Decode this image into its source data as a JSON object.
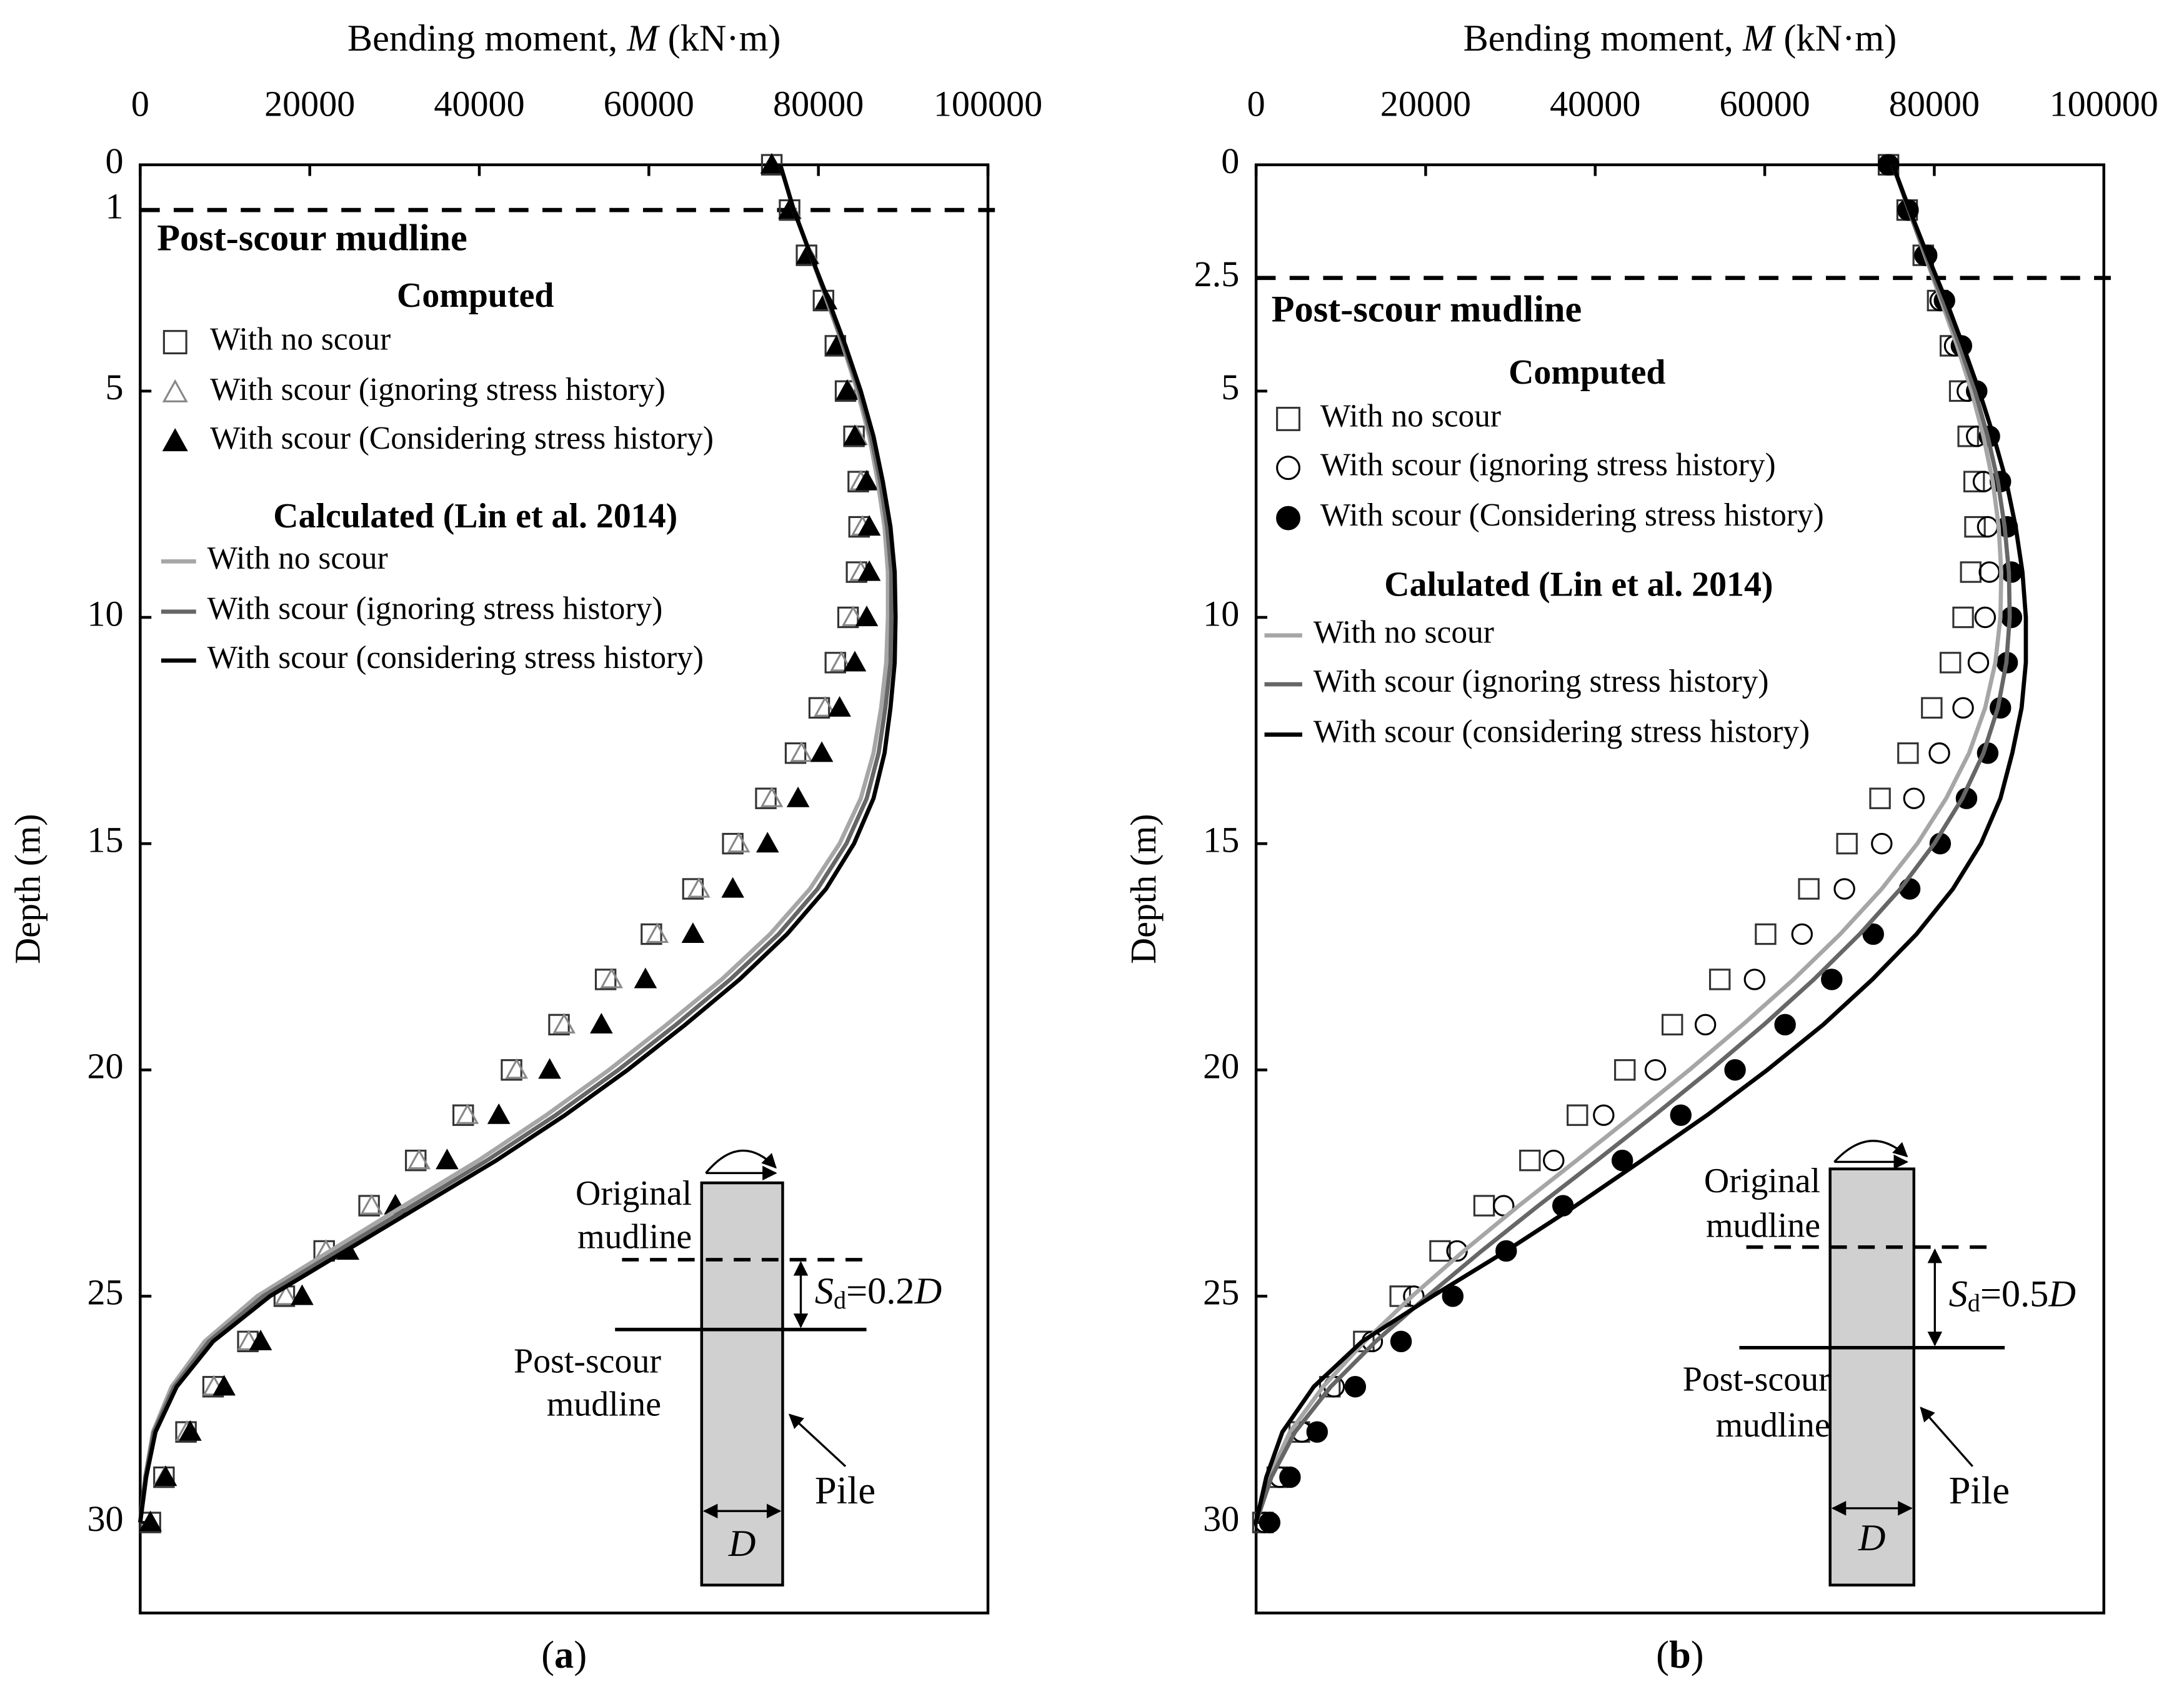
{
  "chart_data": [
    {
      "type": "line",
      "x_label": [
        "Bending moment, ",
        "M",
        " (kN·m)"
      ],
      "y_label": "Depth (m)",
      "xlim": [
        0,
        100000
      ],
      "xticks": [
        0,
        20000,
        40000,
        60000,
        80000,
        100000
      ],
      "ylim": [
        0,
        32
      ],
      "yticks": [
        0,
        1,
        5,
        10,
        15,
        20,
        25,
        30
      ],
      "y_inverted": true,
      "y": [
        0,
        1,
        2,
        3,
        4,
        5,
        6,
        7,
        8,
        9,
        10,
        11,
        12,
        13,
        14,
        15,
        16,
        17,
        18,
        19,
        20,
        21,
        22,
        23,
        24,
        25,
        26,
        27,
        28,
        29,
        30
      ],
      "reference_line": {
        "y": 1,
        "label": "Post-scour mudline"
      },
      "legend_groups": [
        {
          "title": "Computed",
          "series": [
            {
              "name": "With no scour",
              "marker": "square-open",
              "color": "#333333",
              "values": [
                74500,
                76600,
                78600,
                80600,
                82000,
                83200,
                84200,
                84700,
                84800,
                84500,
                83500,
                82000,
                80100,
                77300,
                73800,
                69900,
                65200,
                60300,
                54900,
                49400,
                43800,
                38100,
                32500,
                27000,
                21700,
                17000,
                12700,
                8600,
                5400,
                2800,
                1200
              ]
            },
            {
              "name": "With scour (ignoring stress history)",
              "marker": "triangle-open",
              "color": "#888888",
              "values": [
                74500,
                76700,
                78800,
                80900,
                82300,
                83500,
                84500,
                85000,
                85200,
                85000,
                84100,
                82700,
                80800,
                78000,
                74500,
                70600,
                65900,
                61000,
                55600,
                50000,
                44400,
                38600,
                32900,
                27300,
                21900,
                17200,
                12800,
                8700,
                5500,
                2900,
                1200
              ]
            },
            {
              "name": "With scour (Considering stress history)",
              "marker": "triangle",
              "color": "#000000",
              "values": [
                74500,
                76600,
                78700,
                80900,
                82200,
                83400,
                84300,
                85700,
                86000,
                86000,
                85700,
                84300,
                82500,
                80400,
                77600,
                74000,
                69900,
                65200,
                59600,
                54400,
                48300,
                42300,
                36200,
                30100,
                24500,
                19100,
                14200,
                9900,
                5900,
                3000,
                1200
              ]
            }
          ]
        },
        {
          "title": "Calculated (Lin et al. 2014)",
          "series": [
            {
              "name": "With no scour",
              "color": "#a6a6a6",
              "values": [
                75500,
                77100,
                79100,
                81000,
                82900,
                84600,
                86000,
                87000,
                87800,
                88200,
                88200,
                88000,
                87400,
                86500,
                85000,
                82500,
                79000,
                74300,
                68600,
                62100,
                55300,
                47900,
                39900,
                31100,
                22400,
                13800,
                7600,
                3700,
                1500,
                600,
                0
              ]
            },
            {
              "name": "With scour (ignoring stress history)",
              "color": "#666666",
              "values": [
                75500,
                77100,
                79100,
                81100,
                83000,
                84800,
                86200,
                87300,
                88100,
                88600,
                88600,
                88500,
                87900,
                87100,
                85700,
                83300,
                79900,
                75300,
                69600,
                63200,
                56400,
                49000,
                40900,
                32100,
                23300,
                14500,
                8100,
                4000,
                1600,
                600,
                0
              ]
            },
            {
              "name": "With scour (considering stress history)",
              "color": "#000000",
              "values": [
                75500,
                77100,
                79100,
                81200,
                83200,
                85000,
                86500,
                87600,
                88500,
                89000,
                89100,
                89000,
                88500,
                87800,
                86500,
                84200,
                80900,
                76300,
                70700,
                64300,
                57500,
                50100,
                42000,
                33100,
                24200,
                15300,
                8600,
                4300,
                1800,
                700,
                0
              ]
            }
          ]
        }
      ],
      "inset": {
        "original": [
          "Original",
          "mudline"
        ],
        "post": [
          "Post-scour",
          "mudline"
        ],
        "pile": "Pile",
        "diameter": "D",
        "scour": [
          "S",
          "d",
          "=0.2",
          "D"
        ]
      },
      "panel_label": [
        "(",
        "a",
        ")"
      ]
    },
    {
      "type": "line",
      "x_label": [
        "Bending moment, ",
        "M",
        " (kN·m)"
      ],
      "y_label": "Depth (m)",
      "xlim": [
        0,
        100000
      ],
      "xticks": [
        0,
        20000,
        40000,
        60000,
        80000,
        100000
      ],
      "ylim": [
        0,
        32
      ],
      "yticks": [
        0,
        2.5,
        5,
        10,
        15,
        20,
        25,
        30
      ],
      "y_inverted": true,
      "y": [
        0,
        1,
        2,
        3,
        4,
        5,
        6,
        7,
        8,
        9,
        10,
        11,
        12,
        13,
        14,
        15,
        16,
        17,
        18,
        19,
        20,
        21,
        22,
        23,
        24,
        25,
        26,
        27,
        28,
        29,
        30
      ],
      "reference_line": {
        "y": 2.5,
        "label": "Post-scour mudline"
      },
      "legend_groups": [
        {
          "title": "Computed",
          "series": [
            {
              "name": "With no scour",
              "marker": "square-open",
              "color": "#333333",
              "values": [
                74600,
                76800,
                78700,
                80400,
                81900,
                83000,
                84000,
                84700,
                84800,
                84300,
                83400,
                81900,
                79700,
                76900,
                73600,
                69700,
                65200,
                60100,
                54700,
                49100,
                43500,
                37900,
                32300,
                26900,
                21700,
                17000,
                12700,
                8700,
                5100,
                2500,
                800
              ]
            },
            {
              "name": "With scour (ignoring stress history)",
              "marker": "circle-open",
              "color": "#000000",
              "values": [
                74600,
                76900,
                78900,
                80700,
                82400,
                83900,
                85000,
                85800,
                86300,
                86500,
                86000,
                85200,
                83400,
                80600,
                77600,
                73800,
                69400,
                64400,
                58800,
                53000,
                47100,
                41000,
                35100,
                29200,
                23700,
                18600,
                13700,
                9200,
                5400,
                2800,
                1000
              ]
            },
            {
              "name": "With scour (Considering stress history)",
              "marker": "circle",
              "color": "#000000",
              "values": [
                74600,
                76900,
                79100,
                81200,
                83200,
                85000,
                86500,
                87800,
                88600,
                89100,
                89100,
                88600,
                87800,
                86300,
                83800,
                80700,
                77100,
                72800,
                67900,
                62400,
                56500,
                50100,
                43200,
                36200,
                29500,
                23200,
                17100,
                11700,
                7200,
                4000,
                1600
              ]
            }
          ]
        },
        {
          "title": "Calulated (Lin et al. 2014)",
          "series": [
            {
              "name": "With no scour",
              "color": "#a6a6a6",
              "values": [
                75100,
                77000,
                78900,
                80800,
                82700,
                84400,
                85800,
                86900,
                87600,
                87900,
                87800,
                87200,
                86000,
                84100,
                81400,
                78000,
                73800,
                68900,
                63400,
                57400,
                51100,
                44500,
                37800,
                31000,
                24500,
                18400,
                12800,
                7900,
                4000,
                1500,
                0
              ]
            },
            {
              "name": "With scour (ignoring stress history)",
              "color": "#666666",
              "values": [
                75100,
                77000,
                79000,
                81000,
                83000,
                84800,
                86300,
                87500,
                88300,
                88800,
                88900,
                88500,
                87500,
                85800,
                83300,
                80000,
                76000,
                71200,
                65800,
                59900,
                53600,
                47000,
                40200,
                33300,
                26600,
                20200,
                14100,
                8800,
                4600,
                1800,
                0
              ]
            },
            {
              "name": "With scour (considering stress history)",
              "color": "#000000",
              "values": [
                75100,
                77100,
                79200,
                81400,
                83400,
                85300,
                87000,
                88500,
                89600,
                90400,
                90800,
                90800,
                90300,
                89200,
                87800,
                85500,
                82200,
                77900,
                72700,
                66900,
                60300,
                53200,
                45500,
                37700,
                29500,
                20800,
                12500,
                6800,
                3100,
                1200,
                0
              ]
            }
          ]
        }
      ],
      "inset": {
        "original": [
          "Original",
          "mudline"
        ],
        "post": [
          "Post-scour",
          "mudline"
        ],
        "pile": "Pile",
        "diameter": "D",
        "scour": [
          "S",
          "d",
          "=0.5",
          "D"
        ]
      },
      "panel_label": [
        "(",
        "b",
        ")"
      ]
    }
  ]
}
